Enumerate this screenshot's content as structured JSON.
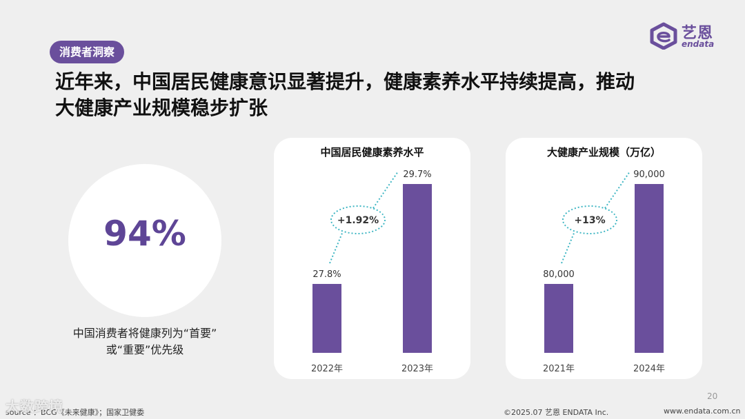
{
  "tag": "消费者洞察",
  "headline": {
    "line1": "近年来，中国居民健康意识显著提升，健康素养水平持续提高，推动",
    "line2": "大健康产业规模稳步扩张"
  },
  "logo": {
    "cn": "艺恩",
    "en": "endata"
  },
  "stat": {
    "value": "94%",
    "caption_line1": "中国消费者将健康列为“首要”",
    "caption_line2": "或“重要”优先级"
  },
  "colors": {
    "accent": "#6a4f9c",
    "bar": "#6a4f9c",
    "dotted": "#3fb6c3"
  },
  "chart_data": [
    {
      "type": "bar",
      "title": "中国居民健康素养水平",
      "categories": [
        "2022年",
        "2023年"
      ],
      "values": [
        27.8,
        29.7
      ],
      "value_labels": [
        "27.8%",
        "29.7%"
      ],
      "growth_label": "+1.92%"
    },
    {
      "type": "bar",
      "title": "大健康产业规模（万亿）",
      "categories": [
        "2021年",
        "2024年"
      ],
      "values": [
        80000,
        90000
      ],
      "value_labels": [
        "80,000",
        "90,000"
      ],
      "growth_label": "+13%"
    }
  ],
  "footer": {
    "page": "20",
    "source": "source ：BCG《未来健康》；国家卫健委",
    "watermark": "大数跨境",
    "copyright": "©2025.07  艺恩 ENDATA Inc.",
    "website": "www.endata.com.cn"
  }
}
